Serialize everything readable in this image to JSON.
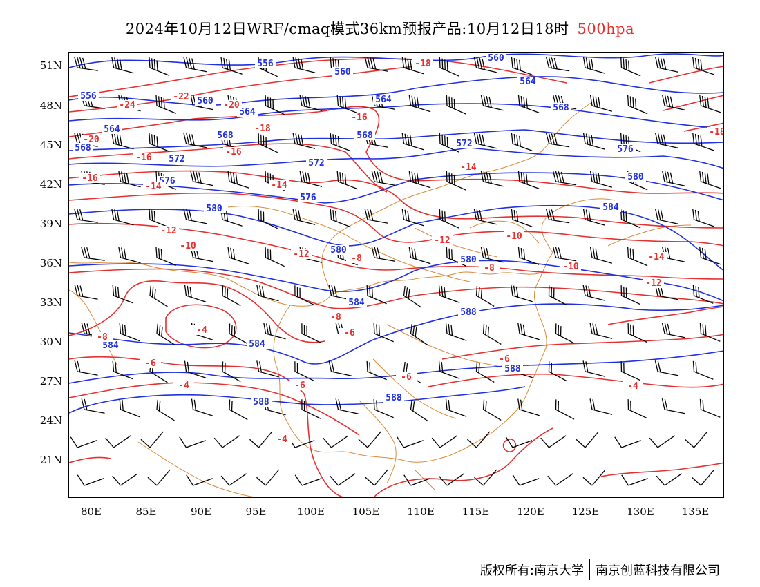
{
  "header": {
    "title": "2024年10月12日WRF/cmaq模式36km预报产品:10月12日18时",
    "level": "500hpa"
  },
  "axes": {
    "lat_labels": [
      "51N",
      "48N",
      "45N",
      "42N",
      "39N",
      "36N",
      "33N",
      "30N",
      "27N",
      "24N",
      "21N"
    ],
    "lon_labels": [
      "80E",
      "85E",
      "90E",
      "95E",
      "100E",
      "105E",
      "110E",
      "115E",
      "120E",
      "125E",
      "130E",
      "135E"
    ]
  },
  "contours": {
    "height_color": "#2030e0",
    "temperature_color": "#e53030",
    "border_color": "#d98a3a",
    "height_labels": [
      "556",
      "556",
      "560",
      "560",
      "560",
      "564",
      "564",
      "564",
      "564",
      "568",
      "568",
      "568",
      "568",
      "572",
      "572",
      "572",
      "576",
      "576",
      "576",
      "580",
      "580",
      "580",
      "580",
      "584",
      "584",
      "584",
      "584",
      "588",
      "588",
      "588",
      "588"
    ],
    "temperature_labels": [
      "-24",
      "-22",
      "-20",
      "-20",
      "-18",
      "-18",
      "-18",
      "-16",
      "-16",
      "-16",
      "-16",
      "-14",
      "-14",
      "-14",
      "-14",
      "-12",
      "-12",
      "-12",
      "-12",
      "-10",
      "-10",
      "-10",
      "-8",
      "-8",
      "-8",
      "-8",
      "-6",
      "-6",
      "-6",
      "-6",
      "-6",
      "-4",
      "-4",
      "-4",
      "-4"
    ]
  },
  "footer": {
    "copyright": "版权所有:南京大学",
    "company": "南京创蓝科技有限公司"
  }
}
